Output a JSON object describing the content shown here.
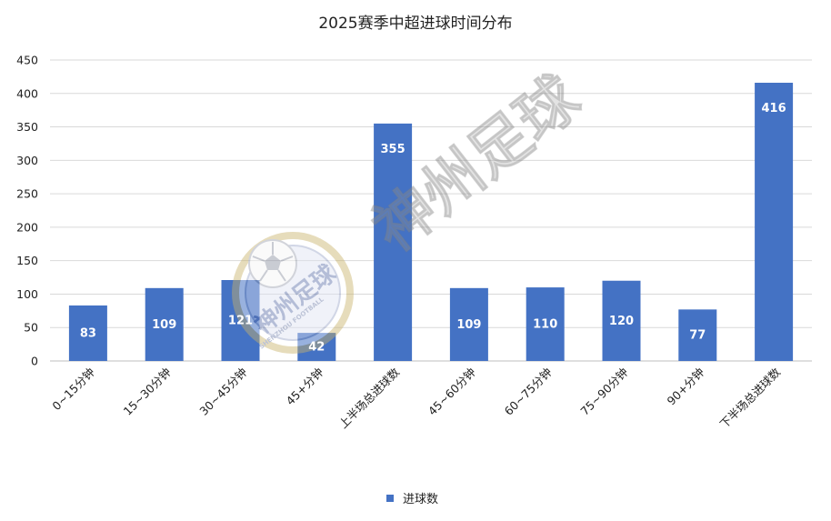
{
  "chart_data": {
    "type": "bar",
    "title": "2025赛季中超进球时间分布",
    "xlabel": "",
    "ylabel": "",
    "ylim": [
      0,
      450
    ],
    "yticks": [
      0,
      50,
      100,
      150,
      200,
      250,
      300,
      350,
      400,
      450
    ],
    "grid": true,
    "legend_position": "bottom",
    "categories": [
      "0~15分钟",
      "15~30分钟",
      "30~45分钟",
      "45+分钟",
      "上半场总进球数",
      "45~60分钟",
      "60~75分钟",
      "75~90分钟",
      "90+分钟",
      "下半场总进球数"
    ],
    "series": [
      {
        "name": "进球数",
        "color": "#4472c4",
        "values": [
          83,
          109,
          121,
          42,
          355,
          109,
          110,
          120,
          77,
          416
        ]
      }
    ],
    "data_labels": true
  },
  "watermark": {
    "text": "神州足球",
    "badge_text": "SHENZHOU FOOTBALL",
    "badge_icon": "soccer-ball-icon"
  }
}
